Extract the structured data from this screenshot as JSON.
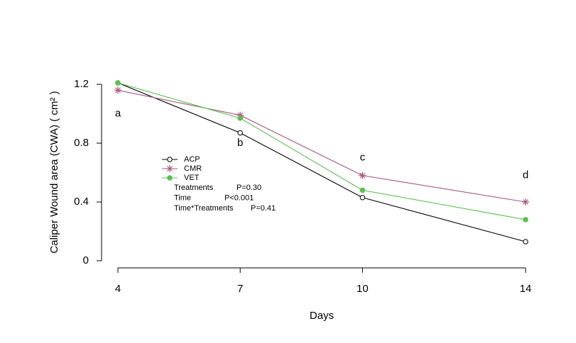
{
  "chart_data": {
    "type": "line",
    "x_label": "Days",
    "y_label": "Caliper Wound area (CWA) ( cm² )",
    "x": [
      4,
      7,
      10,
      14
    ],
    "xlim": [
      4,
      14
    ],
    "xticks": [
      4,
      7,
      10,
      14
    ],
    "ylim": [
      0,
      1.2
    ],
    "yticks": [
      0,
      0.4,
      0.8,
      1.2
    ],
    "series": [
      {
        "name": "ACP",
        "color": "#000000",
        "marker": "open-circle",
        "values": [
          1.21,
          0.87,
          0.43,
          0.13
        ]
      },
      {
        "name": "CMR",
        "color": "#a8587e",
        "marker": "asterisk",
        "values": [
          1.16,
          0.99,
          0.58,
          0.4
        ]
      },
      {
        "name": "VET",
        "color": "#5cbf4f",
        "marker": "filled-circle",
        "values": [
          1.21,
          0.97,
          0.48,
          0.28
        ]
      }
    ],
    "letters": [
      {
        "text": "a",
        "x": 4,
        "y": 1.0
      },
      {
        "text": "b",
        "x": 7,
        "y": 0.8
      },
      {
        "text": "c",
        "x": 10,
        "y": 0.7
      },
      {
        "text": "d",
        "x": 14,
        "y": 0.58
      }
    ],
    "stats": [
      {
        "term": "Treatments",
        "p": "P=0.30"
      },
      {
        "term": "Time",
        "p": "P<0.001"
      },
      {
        "term": "Time*Treatments",
        "p": "P=0.41"
      }
    ]
  }
}
